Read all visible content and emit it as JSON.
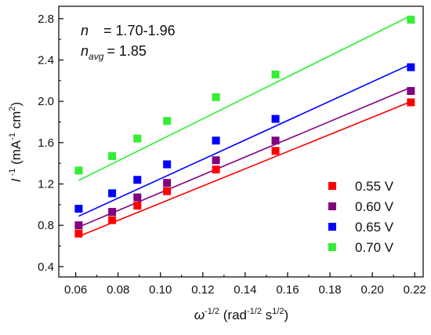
{
  "chart_data": {
    "type": "scatter",
    "xlabel": {
      "base": "ω",
      "sup1": "-1/2",
      "mid": " (rad",
      "sup2": "-1/2",
      "mid2": " s",
      "sup3": "1/2",
      "end": ")"
    },
    "ylabel": {
      "base": "I",
      "sup1": " -1",
      "mid": " (mA",
      "sup2": "-1",
      "mid2": " cm",
      "sup3": "2",
      "end": ")"
    },
    "xlim": [
      0.052,
      0.224
    ],
    "ylim": [
      0.3,
      2.92
    ],
    "xticks": [
      "0.06",
      "0.08",
      "0.10",
      "0.12",
      "0.14",
      "0.16",
      "0.18",
      "0.20",
      "0.22"
    ],
    "yticks": [
      "0.4",
      "0.8",
      "1.2",
      "1.6",
      "2.0",
      "2.4",
      "2.8"
    ],
    "x": [
      0.0614,
      0.0772,
      0.0891,
      0.1031,
      0.1262,
      0.1543,
      0.2182
    ],
    "series": [
      {
        "name": "0.55 V",
        "color": "#ff0000",
        "values": [
          0.72,
          0.85,
          0.99,
          1.13,
          1.34,
          1.52,
          1.99
        ],
        "fit": [
          0.693,
          1.997
        ]
      },
      {
        "name": "0.60 V",
        "color": "#800080",
        "values": [
          0.8,
          0.93,
          1.07,
          1.21,
          1.43,
          1.62,
          2.1
        ],
        "fit": [
          0.783,
          2.135
        ]
      },
      {
        "name": "0.65 V",
        "color": "#0000ff",
        "values": [
          0.96,
          1.11,
          1.24,
          1.39,
          1.62,
          1.83,
          2.33
        ],
        "fit": [
          0.888,
          2.36
        ]
      },
      {
        "name": "0.70 V",
        "color": "#33ee33",
        "values": [
          1.33,
          1.47,
          1.64,
          1.81,
          2.04,
          2.26,
          2.79
        ],
        "fit": [
          1.235,
          2.829
        ]
      }
    ],
    "annotation": {
      "n_label": "n",
      "n_value": "= 1.70-1.96",
      "navg_label": "n",
      "navg_sub": "avg",
      "navg_value": "= 1.85"
    },
    "legend_position": "right-middle"
  }
}
